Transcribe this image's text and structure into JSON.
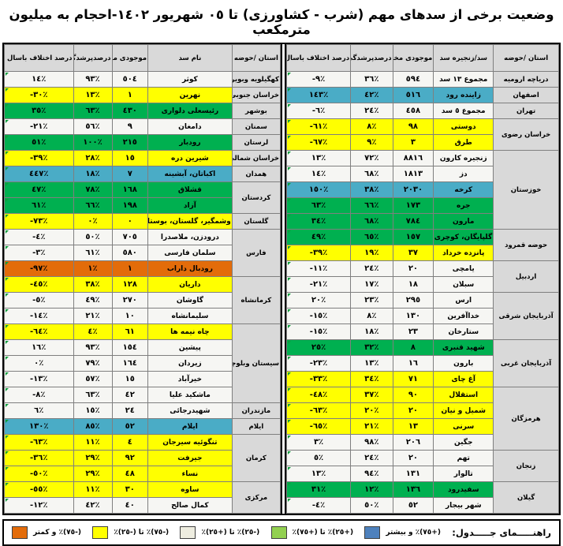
{
  "title": "وضعیت برخی از سدهای مهم (شرب - کشاورزی) تا ٠٥ شهریور ١٤٠٢-احجام به میلیون مترمکعب",
  "headers": {
    "province": "استان /حوضه",
    "dam_chain": "سد/زنجیره سد",
    "dam_name": "نام سد",
    "storage": "موجودی مخزن",
    "fill": "درصدپرشدگی",
    "diff": "درصد اختلاف باسال قبل"
  },
  "palette": {
    "white": "#f6f6f3",
    "yellow": "#ffff00",
    "green": "#00b050",
    "blue": "#4aacc6",
    "orange": "#e36c0a",
    "header_gray": "#d9d9d9"
  },
  "right_table": {
    "groups": [
      {
        "province": "دریاچه ارومیه",
        "dams": [
          {
            "name": "مجموع ١٣ سد",
            "storage": "٥٩٤",
            "fill": "٣٦٪",
            "diff": "-٩٪",
            "band": "white"
          }
        ]
      },
      {
        "province": "اصفهان",
        "dams": [
          {
            "name": "زاینده رود",
            "storage": "٥١٦",
            "fill": "٤٢٪",
            "diff": "١٤٣٪",
            "band": "blue"
          }
        ]
      },
      {
        "province": "تهران",
        "dams": [
          {
            "name": "مجموع ٥ سد",
            "storage": "٤٥٨",
            "fill": "٢٤٪",
            "diff": "-٦٪",
            "band": "white"
          }
        ]
      },
      {
        "province": "خراسان رضوی",
        "dams": [
          {
            "name": "دوستی",
            "storage": "٩٨",
            "fill": "٨٪",
            "diff": "-٦١٪",
            "band": "yellow"
          },
          {
            "name": "طرق",
            "storage": "٣",
            "fill": "٩٪",
            "diff": "-٦٧٪",
            "band": "yellow"
          }
        ]
      },
      {
        "province": "خوزستان",
        "dams": [
          {
            "name": "زنجیره کارون",
            "storage": "٨٨١٦",
            "fill": "٧٢٪",
            "diff": "١٣٪",
            "band": "white"
          },
          {
            "name": "دز",
            "storage": "١٨١٣",
            "fill": "٦٨٪",
            "diff": "١٤٪",
            "band": "white"
          },
          {
            "name": "کرخه",
            "storage": "٢٠٣٠",
            "fill": "٣٨٪",
            "diff": "١٥٠٪",
            "band": "blue"
          },
          {
            "name": "جره",
            "storage": "١٧٣",
            "fill": "٦٦٪",
            "diff": "٦٣٪",
            "band": "green"
          },
          {
            "name": "مارون",
            "storage": "٧٨٤",
            "fill": "٦٨٪",
            "diff": "٣٤٪",
            "band": "green"
          }
        ]
      },
      {
        "province": "حوضه قمرود",
        "dams": [
          {
            "name": "گلپایگان، کوچری",
            "storage": "١٥٧",
            "fill": "٦٥٪",
            "diff": "٤٩٪",
            "band": "green"
          },
          {
            "name": "پانزده خرداد",
            "storage": "٣٧",
            "fill": "١٩٪",
            "diff": "-٣٩٪",
            "band": "yellow"
          }
        ]
      },
      {
        "province": "اردبیل",
        "dams": [
          {
            "name": "یامچی",
            "storage": "٢٠",
            "fill": "٢٤٪",
            "diff": "-١١٪",
            "band": "white"
          },
          {
            "name": "سبلان",
            "storage": "١٨",
            "fill": "١٧٪",
            "diff": "-٢١٪",
            "band": "white"
          }
        ]
      },
      {
        "province": "آذربایجان شرقی",
        "dams": [
          {
            "name": "ارس",
            "storage": "٢٩٥",
            "fill": "٢٣٪",
            "diff": "٢٠٪",
            "band": "white"
          },
          {
            "name": "خداآفرین",
            "storage": "١٣٠",
            "fill": "٨٪",
            "diff": "-١٥٪",
            "band": "white"
          },
          {
            "name": "ستارخان",
            "storage": "٢٣",
            "fill": "١٨٪",
            "diff": "-١٥٪",
            "band": "white"
          }
        ]
      },
      {
        "province": "آذربایجان غربی",
        "dams": [
          {
            "name": "شهید قنبری",
            "storage": "٨",
            "fill": "٣٢٪",
            "diff": "٢٥٪",
            "band": "green"
          },
          {
            "name": "بارون",
            "storage": "١٦",
            "fill": "١٣٪",
            "diff": "-٢٣٪",
            "band": "white"
          },
          {
            "name": "آغ چای",
            "storage": "٧١",
            "fill": "٣٤٪",
            "diff": "-٣٣٪",
            "band": "yellow"
          }
        ]
      },
      {
        "province": "هرمزگان",
        "dams": [
          {
            "name": "استقلال",
            "storage": "٩٠",
            "fill": "٣٧٪",
            "diff": "-٤٨٪",
            "band": "yellow"
          },
          {
            "name": "شمیل و نیان",
            "storage": "٢٠",
            "fill": "٢٠٪",
            "diff": "-٦٣٪",
            "band": "yellow"
          },
          {
            "name": "سرنی",
            "storage": "١٣",
            "fill": "٢١٪",
            "diff": "-٦٥٪",
            "band": "yellow"
          },
          {
            "name": "جگین",
            "storage": "٢٠٦",
            "fill": "٩٨٪",
            "diff": "٣٪",
            "band": "white"
          }
        ]
      },
      {
        "province": "زنجان",
        "dams": [
          {
            "name": "تهم",
            "storage": "٢٠",
            "fill": "٢٤٪",
            "diff": "٥٪",
            "band": "white"
          },
          {
            "name": "تالوار",
            "storage": "١٣١",
            "fill": "٩٤٪",
            "diff": "١٣٪",
            "band": "white"
          }
        ]
      },
      {
        "province": "گیلان",
        "dams": [
          {
            "name": "سفیدرود",
            "storage": "١٣٦",
            "fill": "١٢٪",
            "diff": "٣١٪",
            "band": "green"
          },
          {
            "name": "شهر بیجار",
            "storage": "٥٢",
            "fill": "٥٠٪",
            "diff": "-٤٪",
            "band": "white"
          }
        ]
      }
    ]
  },
  "left_table": {
    "groups": [
      {
        "province": "کهگیلویه وبویراحمد",
        "dams": [
          {
            "name": "کوثر",
            "storage": "٥٠٤",
            "fill": "٩٣٪",
            "diff": "١٤٪",
            "band": "white"
          }
        ]
      },
      {
        "province": "خراسان جنوبی",
        "dams": [
          {
            "name": "نهرین",
            "storage": "١",
            "fill": "١٣٪",
            "diff": "-٣٠٪",
            "band": "yellow"
          }
        ]
      },
      {
        "province": "بوشهر",
        "dams": [
          {
            "name": "رئیسعلی دلواری",
            "storage": "٤٣٠",
            "fill": "٦٣٪",
            "diff": "٣٥٪",
            "band": "green"
          }
        ]
      },
      {
        "province": "سمنان",
        "dams": [
          {
            "name": "دامغان",
            "storage": "٩",
            "fill": "٥٦٪",
            "diff": "-٢١٪",
            "band": "white"
          }
        ]
      },
      {
        "province": "لرستان",
        "dams": [
          {
            "name": "رودبار",
            "storage": "٢١٥",
            "fill": "١٠٠٪",
            "diff": "٥١٪",
            "band": "green"
          }
        ]
      },
      {
        "province": "خراسان شمالی",
        "dams": [
          {
            "name": "شیرین دره",
            "storage": "١٥",
            "fill": "٢٨٪",
            "diff": "-٣٩٪",
            "band": "yellow"
          }
        ]
      },
      {
        "province": "همدان",
        "dams": [
          {
            "name": "اکباتان، آبشینه",
            "storage": "٧",
            "fill": "١٨٪",
            "diff": "٤٤٧٪",
            "band": "blue"
          }
        ]
      },
      {
        "province": "کردستان",
        "dams": [
          {
            "name": "قشلاق",
            "storage": "١٦٨",
            "fill": "٧٨٪",
            "diff": "٤٧٪",
            "band": "green"
          },
          {
            "name": "آزاد",
            "storage": "١٩٨",
            "fill": "٦٦٪",
            "diff": "٦١٪",
            "band": "green"
          }
        ]
      },
      {
        "province": "گلستان",
        "dams": [
          {
            "name": "وشمگیر، گلستان، بوستان",
            "storage": "٠",
            "fill": "٠٪",
            "diff": "-٧٣٪",
            "band": "yellow"
          }
        ]
      },
      {
        "province": "فارس",
        "dams": [
          {
            "name": "درودزن، ملاصدرا",
            "storage": "٧٠٥",
            "fill": "٥٠٪",
            "diff": "-٤٪",
            "band": "white"
          },
          {
            "name": "سلمان فارسی",
            "storage": "٥٨٠",
            "fill": "٦١٪",
            "diff": "-٣٪",
            "band": "white"
          },
          {
            "name": "رودبال داراب",
            "storage": "١",
            "fill": "١٪",
            "diff": "-٩٧٪",
            "band": "orange"
          }
        ]
      },
      {
        "province": "کرمانشاه",
        "dams": [
          {
            "name": "داریان",
            "storage": "١٢٨",
            "fill": "٣٨٪",
            "diff": "-٤٥٪",
            "band": "yellow"
          },
          {
            "name": "گاوشان",
            "storage": "٢٧٠",
            "fill": "٤٩٪",
            "diff": "-٥٪",
            "band": "white"
          },
          {
            "name": "سلیمانشاه",
            "storage": "١٠",
            "fill": "٢١٪",
            "diff": "-١٤٪",
            "band": "white"
          }
        ]
      },
      {
        "province": "سیستان وبلوچستان",
        "dams": [
          {
            "name": "چاه نیمه ها",
            "storage": "٦١",
            "fill": "٤٪",
            "diff": "-٦٤٪",
            "band": "yellow"
          },
          {
            "name": "پیشین",
            "storage": "١٥٤",
            "fill": "٩٣٪",
            "diff": "١٦٪",
            "band": "white"
          },
          {
            "name": "زیردان",
            "storage": "١٦٤",
            "fill": "٧٩٪",
            "diff": "٠٪",
            "band": "white"
          },
          {
            "name": "خیرآباد",
            "storage": "١٥",
            "fill": "٥٧٪",
            "diff": "-١٣٪",
            "band": "white"
          },
          {
            "name": "ماشکید علیا",
            "storage": "٤٢",
            "fill": "٦٣٪",
            "diff": "-٨٪",
            "band": "white"
          }
        ]
      },
      {
        "province": "مازندران",
        "dams": [
          {
            "name": "شهیدرجائی",
            "storage": "٢٤",
            "fill": "١٥٪",
            "diff": "٦٪",
            "band": "white"
          }
        ]
      },
      {
        "province": "ایلام",
        "dams": [
          {
            "name": "ایلام",
            "storage": "٥٢",
            "fill": "٨٥٪",
            "diff": "١٣٠٪",
            "band": "blue"
          }
        ]
      },
      {
        "province": "کرمان",
        "dams": [
          {
            "name": "تنگوئیه سیرجان",
            "storage": "٤",
            "fill": "١١٪",
            "diff": "-٦٣٪",
            "band": "yellow"
          },
          {
            "name": "جیرفت",
            "storage": "٩٢",
            "fill": "٢٩٪",
            "diff": "-٣٦٪",
            "band": "yellow"
          },
          {
            "name": "نساء",
            "storage": "٤٨",
            "fill": "٢٩٪",
            "diff": "-٥٠٪",
            "band": "yellow"
          }
        ]
      },
      {
        "province": "مرکزی",
        "dams": [
          {
            "name": "ساوه",
            "storage": "٣٠",
            "fill": "١١٪",
            "diff": "-٥٥٪",
            "band": "yellow"
          },
          {
            "name": "کمال صالح",
            "storage": "٤٠",
            "fill": "٤٢٪",
            "diff": "-١٢٪",
            "band": "white"
          }
        ]
      }
    ]
  },
  "legend": {
    "title": "راهنـــــمای جـــــدول:",
    "items": [
      {
        "label": "(+٧٥)٪ و بیشتر",
        "color": "#4e81bd"
      },
      {
        "label": "(+٢٥)٪ تا (+٧٥)٪",
        "color": "#92d050"
      },
      {
        "label": "(-٢٥)٪ تا (+٢٥)٪",
        "color": "#eeede0"
      },
      {
        "label": "(-٧٥)٪ تا (-٢٥)٪",
        "color": "#ffff00"
      },
      {
        "label": "(-٧٥)٪ و کمتر",
        "color": "#e36c0a"
      }
    ]
  }
}
